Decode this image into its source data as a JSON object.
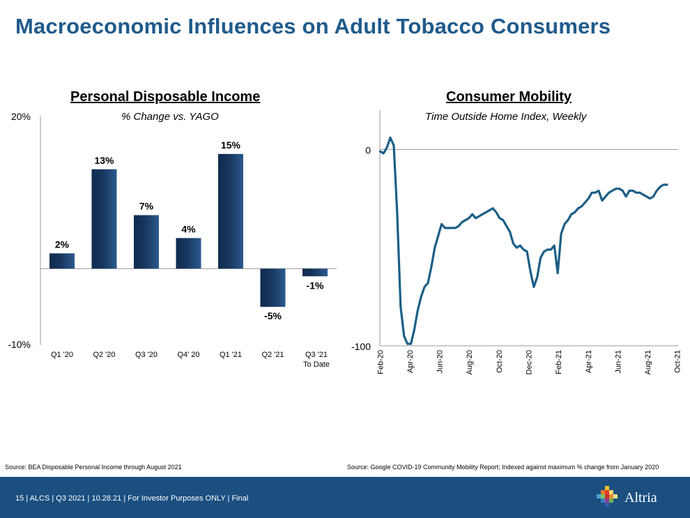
{
  "page": {
    "title": "Macroeconomic Influences on Adult Tobacco Consumers",
    "source_left": "Source: BEA Disposable Personal Income through August 2021",
    "source_right": "Source: Google COVID-19 Community Mobility Report; Indexed against maximum % change from January 2020",
    "footer": "15  |  ALCS  |  Q3 2021  |  10.28.21  |  For Investor Purposes ONLY  |  Final",
    "logo_text": "Altria"
  },
  "colors": {
    "title": "#1f5a8c",
    "bar": "#17375e",
    "line": "#1b5e86",
    "footer": "#1b4f80"
  },
  "chart_data": [
    {
      "type": "bar",
      "title": "Personal Disposable Income",
      "subtitle": "% Change vs. YAGO",
      "categories": [
        "Q1 '20",
        "Q2 '20",
        "Q3 '20",
        "Q4' 20",
        "Q1 '21",
        "Q2 '21",
        "Q3 '21 To Date"
      ],
      "values": [
        2,
        13,
        7,
        4,
        15,
        -5,
        -1
      ],
      "data_labels": [
        "2%",
        "13%",
        "7%",
        "4%",
        "15%",
        "-5%",
        "-1%"
      ],
      "ylim": [
        -10,
        20
      ],
      "ytick_labels": [
        "20%",
        "-10%"
      ]
    },
    {
      "type": "line",
      "title": "Consumer Mobility",
      "subtitle": "Time Outside Home Index, Weekly",
      "ylim": [
        -100,
        20
      ],
      "ytick_labels": [
        "0",
        "-100"
      ],
      "x_labels": [
        "Feb-20",
        "Apr-20",
        "Jun-20",
        "Aug-20",
        "Oct-20",
        "Dec-20",
        "Feb-21",
        "Apr-21",
        "Jun-21",
        "Aug-21",
        "Oct-21"
      ],
      "x_label_weeks": [
        0,
        8.7,
        17.4,
        26.1,
        34.8,
        43.5,
        52.2,
        60.9,
        69.6,
        78.3,
        87.0
      ],
      "series": [
        {
          "name": "Time Outside Home Index",
          "values": [
            -1,
            -2,
            1,
            6,
            2,
            -32,
            -80,
            -95,
            -99,
            -99,
            -92,
            -82,
            -75,
            -70,
            -68,
            -60,
            -50,
            -44,
            -38,
            -40,
            -40,
            -40,
            -40,
            -39,
            -37,
            -36,
            -35,
            -33,
            -35,
            -34,
            -33,
            -32,
            -31,
            -30,
            -32,
            -35,
            -36,
            -39,
            -42,
            -48,
            -50,
            -49,
            -51,
            -52,
            -62,
            -70,
            -65,
            -55,
            -52,
            -51,
            -51,
            -49,
            -63,
            -43,
            -38,
            -36,
            -33,
            -32,
            -30,
            -29,
            -27,
            -25,
            -22,
            -22,
            -21,
            -26,
            -24,
            -22,
            -21,
            -20,
            -20,
            -21,
            -24,
            -21,
            -21,
            -22,
            -22,
            -23,
            -24,
            -25,
            -24,
            -21,
            -19,
            -18,
            -18
          ]
        }
      ]
    }
  ]
}
